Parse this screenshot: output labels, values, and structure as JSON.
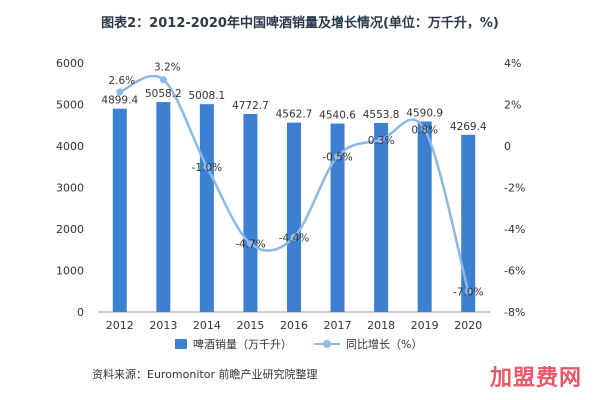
{
  "title": "图表2：2012-2020年中国啤酒销量及增长情况(单位：万千升，%)",
  "source": "资料来源：Euromonitor 前瞻产业研究院整理",
  "watermark_text": "加盟费网",
  "colors": {
    "bar": "#3d7fd1",
    "line": "#8db8e8",
    "axis": "#666666",
    "label": "#333333",
    "watermark": "#e8465a"
  },
  "chart_data": {
    "type": "bar",
    "title": "图表2：2012-2020年中国啤酒销量及增长情况(单位：万千升，%)",
    "categories": [
      "2012",
      "2013",
      "2014",
      "2015",
      "2016",
      "2017",
      "2018",
      "2019",
      "2020"
    ],
    "series": [
      {
        "name": "啤酒销量（万千升）",
        "type": "bar",
        "axis": "left",
        "values": [
          4899.4,
          5058.2,
          5008.1,
          4772.7,
          4562.7,
          4540.6,
          4553.8,
          4590.9,
          4269.4
        ],
        "labels": [
          "4899.4",
          "5058.2",
          "5008.1",
          "4772.7",
          "4562.7",
          "4540.6",
          "4553.8",
          "4590.9",
          "4269.4"
        ]
      },
      {
        "name": "同比增长（%）",
        "type": "line",
        "axis": "right",
        "values": [
          2.6,
          3.2,
          -1.0,
          -4.7,
          -4.4,
          -0.5,
          0.3,
          0.8,
          -7.0
        ],
        "labels": [
          "2.6%",
          "3.2%",
          "-1.0%",
          "-4.7%",
          "-4.4%",
          "-0.5%",
          "0.3%",
          "0.8%",
          "-7.0%"
        ]
      }
    ],
    "ylim_left": [
      0,
      6000
    ],
    "ylim_right": [
      -8,
      4
    ],
    "left_ticks": [
      "0",
      "1000",
      "2000",
      "3000",
      "4000",
      "5000",
      "6000"
    ],
    "right_ticks": [
      "-8%",
      "-6%",
      "-4%",
      "-2%",
      "0",
      "2%",
      "4%"
    ],
    "grid": false,
    "legend_position": "bottom"
  }
}
